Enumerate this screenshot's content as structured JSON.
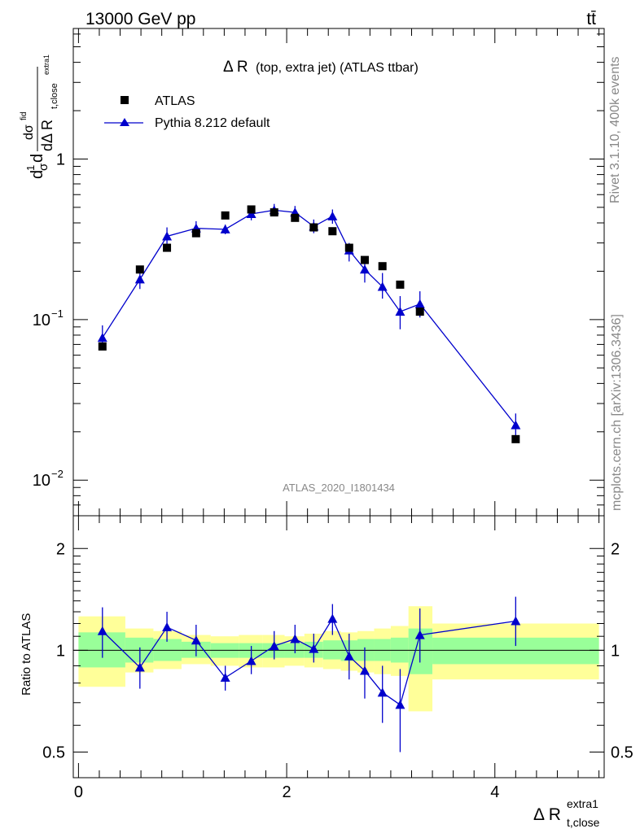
{
  "header": {
    "energy_label": "13000 GeV pp",
    "process_label": "tt̄"
  },
  "side_labels": {
    "rivet": "Rivet 3.1.10,  400k events",
    "mcplots": "mcplots.cern.ch [arXiv:1306.3436]"
  },
  "chart_data": [
    {
      "type": "scatter",
      "title": "Δ R",
      "title_suffix": "(top, extra jet) (ATLAS ttbar)",
      "analysis_id": "ATLAS_2020_I1801434",
      "ylabel_main": "dσ",
      "ylabel_sub": "dΔ R",
      "ylabel_sub2": "t,close",
      "ylabel_sup": "extra1",
      "ylabel_prefix_num": "1",
      "ylabel_prefix_den": "σ",
      "ylabel_prefix_d": "d",
      "ylabel_fid": "fid",
      "yscale": "log",
      "ylim": [
        0.006,
        6.5
      ],
      "xlim": [
        -0.05,
        5.05
      ],
      "y_ticks": [
        {
          "value": 1,
          "label": "1"
        },
        {
          "value": 0.1,
          "label": "10",
          "exp": "−1"
        },
        {
          "value": 0.01,
          "label": "10",
          "exp": "−2"
        }
      ],
      "legend": [
        {
          "label": "ATLAS",
          "marker": "square",
          "color": "#000000"
        },
        {
          "label": "Pythia 8.212 default",
          "marker": "triangle",
          "color": "#0000cc"
        }
      ],
      "legend_position": "top-left",
      "series": [
        {
          "name": "ATLAS",
          "points": [
            {
              "x": 0.23,
              "y": 0.068
            },
            {
              "x": 0.59,
              "y": 0.205
            },
            {
              "x": 0.85,
              "y": 0.28
            },
            {
              "x": 1.13,
              "y": 0.345
            },
            {
              "x": 1.41,
              "y": 0.445
            },
            {
              "x": 1.66,
              "y": 0.485
            },
            {
              "x": 1.88,
              "y": 0.465
            },
            {
              "x": 2.08,
              "y": 0.43
            },
            {
              "x": 2.26,
              "y": 0.375
            },
            {
              "x": 2.44,
              "y": 0.355
            },
            {
              "x": 2.6,
              "y": 0.28
            },
            {
              "x": 2.75,
              "y": 0.235
            },
            {
              "x": 2.92,
              "y": 0.215
            },
            {
              "x": 3.09,
              "y": 0.165
            },
            {
              "x": 3.28,
              "y": 0.112
            },
            {
              "x": 4.2,
              "y": 0.018
            }
          ]
        },
        {
          "name": "Pythia 8.212 default",
          "points": [
            {
              "x": 0.23,
              "y": 0.077,
              "lo": 0.065,
              "hi": 0.092
            },
            {
              "x": 0.59,
              "y": 0.178,
              "lo": 0.155,
              "hi": 0.205
            },
            {
              "x": 0.85,
              "y": 0.33,
              "lo": 0.295,
              "hi": 0.375
            },
            {
              "x": 1.13,
              "y": 0.37,
              "lo": 0.33,
              "hi": 0.41
            },
            {
              "x": 1.41,
              "y": 0.365,
              "lo": 0.34,
              "hi": 0.39
            },
            {
              "x": 1.66,
              "y": 0.455,
              "lo": 0.415,
              "hi": 0.5
            },
            {
              "x": 1.88,
              "y": 0.48,
              "lo": 0.44,
              "hi": 0.525
            },
            {
              "x": 2.08,
              "y": 0.465,
              "lo": 0.425,
              "hi": 0.51
            },
            {
              "x": 2.26,
              "y": 0.38,
              "lo": 0.345,
              "hi": 0.42
            },
            {
              "x": 2.44,
              "y": 0.44,
              "lo": 0.395,
              "hi": 0.485
            },
            {
              "x": 2.6,
              "y": 0.27,
              "lo": 0.23,
              "hi": 0.3
            },
            {
              "x": 2.75,
              "y": 0.205,
              "lo": 0.17,
              "hi": 0.24
            },
            {
              "x": 2.92,
              "y": 0.16,
              "lo": 0.135,
              "hi": 0.195
            },
            {
              "x": 3.09,
              "y": 0.112,
              "lo": 0.087,
              "hi": 0.14
            },
            {
              "x": 3.28,
              "y": 0.125,
              "lo": 0.103,
              "hi": 0.15
            },
            {
              "x": 4.2,
              "y": 0.022,
              "lo": 0.0185,
              "hi": 0.026
            }
          ]
        }
      ]
    },
    {
      "type": "scatter",
      "ylabel": "Ratio to ATLAS",
      "xlabel": "Δ R",
      "xlabel_sub": "t,close",
      "xlabel_sup": "extra1",
      "yscale": "log",
      "ylim": [
        0.42,
        2.5
      ],
      "xlim": [
        -0.05,
        5.05
      ],
      "x_ticks": [
        {
          "value": 0,
          "label": "0"
        },
        {
          "value": 2,
          "label": "2"
        },
        {
          "value": 4,
          "label": "4"
        }
      ],
      "y_ticks": [
        {
          "value": 0.5,
          "label": "0.5"
        },
        {
          "value": 1,
          "label": "1"
        },
        {
          "value": 2,
          "label": "2"
        }
      ],
      "reference_line": 1,
      "bands": [
        {
          "x0": 0.0,
          "x1": 0.45,
          "green": [
            0.89,
            1.13
          ],
          "yellow": [
            0.78,
            1.26
          ]
        },
        {
          "x0": 0.45,
          "x1": 0.72,
          "green": [
            0.92,
            1.09
          ],
          "yellow": [
            0.86,
            1.16
          ]
        },
        {
          "x0": 0.72,
          "x1": 0.99,
          "green": [
            0.93,
            1.08
          ],
          "yellow": [
            0.88,
            1.14
          ]
        },
        {
          "x0": 0.99,
          "x1": 1.27,
          "green": [
            0.95,
            1.06
          ],
          "yellow": [
            0.91,
            1.11
          ]
        },
        {
          "x0": 1.27,
          "x1": 1.54,
          "green": [
            0.95,
            1.05
          ],
          "yellow": [
            0.9,
            1.1
          ]
        },
        {
          "x0": 1.54,
          "x1": 1.77,
          "green": [
            0.95,
            1.05
          ],
          "yellow": [
            0.89,
            1.11
          ]
        },
        {
          "x0": 1.77,
          "x1": 1.98,
          "green": [
            0.95,
            1.05
          ],
          "yellow": [
            0.89,
            1.11
          ]
        },
        {
          "x0": 1.98,
          "x1": 2.17,
          "green": [
            0.95,
            1.05
          ],
          "yellow": [
            0.9,
            1.1
          ]
        },
        {
          "x0": 2.17,
          "x1": 2.35,
          "green": [
            0.95,
            1.06
          ],
          "yellow": [
            0.89,
            1.12
          ]
        },
        {
          "x0": 2.35,
          "x1": 2.52,
          "green": [
            0.94,
            1.07
          ],
          "yellow": [
            0.88,
            1.14
          ]
        },
        {
          "x0": 2.52,
          "x1": 2.68,
          "green": [
            0.93,
            1.07
          ],
          "yellow": [
            0.87,
            1.13
          ]
        },
        {
          "x0": 2.68,
          "x1": 2.84,
          "green": [
            0.93,
            1.08
          ],
          "yellow": [
            0.86,
            1.14
          ]
        },
        {
          "x0": 2.84,
          "x1": 3.0,
          "green": [
            0.93,
            1.08
          ],
          "yellow": [
            0.85,
            1.16
          ]
        },
        {
          "x0": 3.0,
          "x1": 3.17,
          "green": [
            0.92,
            1.09
          ],
          "yellow": [
            0.84,
            1.18
          ]
        },
        {
          "x0": 3.17,
          "x1": 3.4,
          "green": [
            0.85,
            1.16
          ],
          "yellow": [
            0.66,
            1.35
          ]
        },
        {
          "x0": 3.4,
          "x1": 5.0,
          "green": [
            0.91,
            1.09
          ],
          "yellow": [
            0.82,
            1.2
          ]
        }
      ],
      "series": [
        {
          "name": "Pythia 8.212 default",
          "points": [
            {
              "x": 0.23,
              "y": 1.14,
              "lo": 0.95,
              "hi": 1.34
            },
            {
              "x": 0.59,
              "y": 0.89,
              "lo": 0.77,
              "hi": 1.02
            },
            {
              "x": 0.85,
              "y": 1.17,
              "lo": 1.06,
              "hi": 1.3
            },
            {
              "x": 1.13,
              "y": 1.07,
              "lo": 0.96,
              "hi": 1.19
            },
            {
              "x": 1.41,
              "y": 0.83,
              "lo": 0.76,
              "hi": 0.9
            },
            {
              "x": 1.66,
              "y": 0.93,
              "lo": 0.85,
              "hi": 1.03
            },
            {
              "x": 1.88,
              "y": 1.03,
              "lo": 0.94,
              "hi": 1.14
            },
            {
              "x": 2.08,
              "y": 1.08,
              "lo": 0.98,
              "hi": 1.19
            },
            {
              "x": 2.26,
              "y": 1.01,
              "lo": 0.92,
              "hi": 1.12
            },
            {
              "x": 2.44,
              "y": 1.24,
              "lo": 1.11,
              "hi": 1.37
            },
            {
              "x": 2.6,
              "y": 0.96,
              "lo": 0.82,
              "hi": 1.12
            },
            {
              "x": 2.75,
              "y": 0.87,
              "lo": 0.72,
              "hi": 1.02
            },
            {
              "x": 2.92,
              "y": 0.75,
              "lo": 0.61,
              "hi": 0.9
            },
            {
              "x": 3.09,
              "y": 0.69,
              "lo": 0.5,
              "hi": 0.88
            },
            {
              "x": 3.28,
              "y": 1.11,
              "lo": 0.92,
              "hi": 1.33
            },
            {
              "x": 4.2,
              "y": 1.22,
              "lo": 1.03,
              "hi": 1.44
            }
          ]
        }
      ]
    }
  ]
}
